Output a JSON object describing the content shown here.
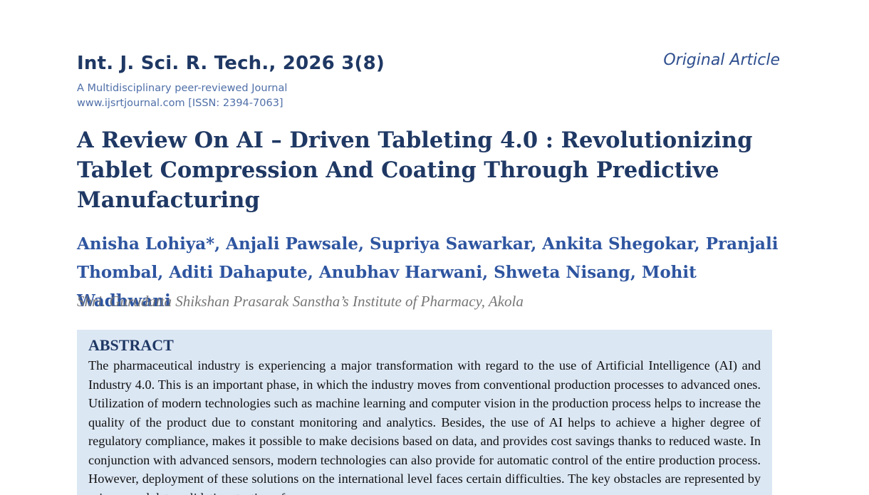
{
  "journal": {
    "title": "Int. J. Sci. R. Tech., 2026 3(8)",
    "tagline": "A Multidisciplinary peer-reviewed Journal",
    "website_issn": "www.ijsrtjournal.com [ISSN: 2394-7063]"
  },
  "article_type": "Original Article",
  "paper": {
    "title": "A Review On AI – Driven Tableting 4.0 : Revolutionizing Tablet Compression And Coating Through Predictive Manufacturing",
    "authors": "Anisha Lohiya*, Anjali Pawsale, Supriya Sawarkar, Ankita Shegokar, Pranjali Thombal, Aditi Dahapute, Anubhav Harwani, Shweta Nisang, Mohit Wadhwani",
    "affiliation": "Shri. Gurudatta Shikshan Prasarak Sanstha’s Institute of Pharmacy, Akola"
  },
  "abstract": {
    "heading": "ABSTRACT",
    "text": "The pharmaceutical industry is experiencing a major transformation with regard to the use of Artificial Intelligence (AI) and Industry 4.0. This is an important phase, in which the industry moves from conventional production processes to advanced ones. Utilization of modern technologies such as machine learning and computer vision in the production process helps to increase the quality of the product due to constant monitoring and analytics. Besides, the use of AI helps to achieve a higher degree of regulatory compliance, makes it possible to make decisions based on data, and provides cost savings thanks to reduced waste. In conjunction with advanced sensors, modern technologies can also provide for automatic control of the entire production process. However, deployment of these solutions on the international level faces certain difficulties. The key obstacles are represented by privacy and data validation, testing of"
  }
}
